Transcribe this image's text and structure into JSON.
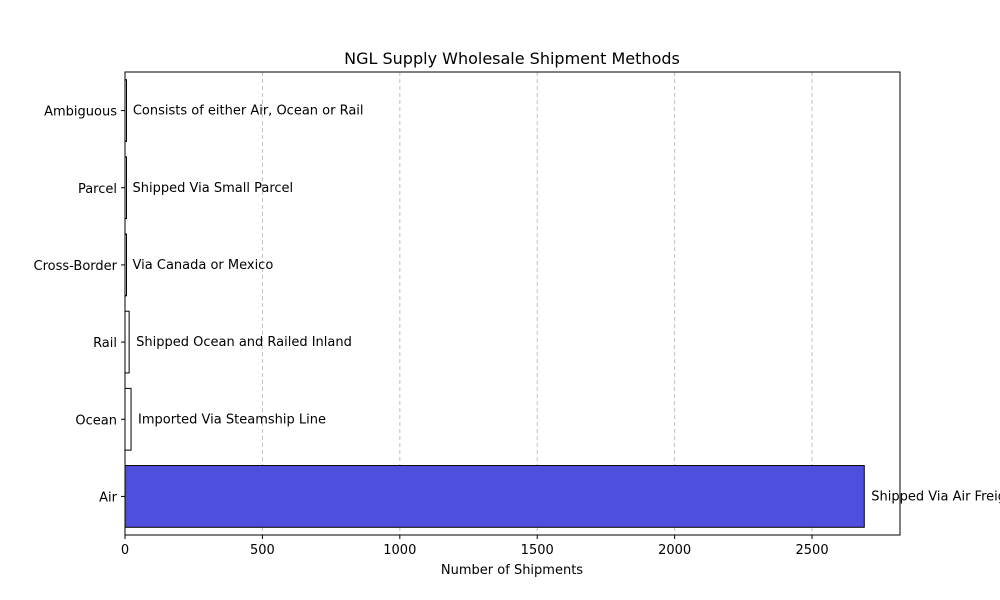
{
  "chart_data": {
    "type": "bar",
    "orientation": "horizontal",
    "title": "NGL Supply Wholesale Shipment Methods",
    "xlabel": "Number of Shipments",
    "ylabel": "",
    "xlim": [
      0,
      2820
    ],
    "xticks": [
      0,
      500,
      1000,
      1500,
      2000,
      2500
    ],
    "grid": "x-dashed",
    "categories": [
      "Air",
      "Ocean",
      "Rail",
      "Cross-Border",
      "Parcel",
      "Ambiguous"
    ],
    "values": [
      2690,
      22,
      15,
      2,
      2,
      3
    ],
    "annotations": [
      "Shipped Via Air Freight",
      "Imported Via Steamship Line",
      "Shipped Ocean and Railed Inland",
      "Via Canada or Mexico",
      "Shipped Via Small Parcel",
      "Consists of either Air, Ocean or Rail"
    ],
    "colors": [
      "#4f4fde",
      "#ffffff",
      "#ffffff",
      "#ffffff",
      "#ffffff",
      "#ffffff"
    ],
    "edge_color": "#000000",
    "grid_color": "#c0c0c0"
  }
}
